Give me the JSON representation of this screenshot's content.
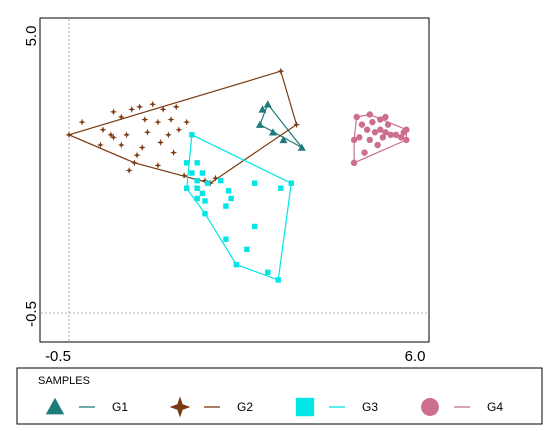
{
  "chart_data": {
    "type": "scatter",
    "xlim": [
      -0.5,
      6.0
    ],
    "ylim": [
      -0.5,
      5.0
    ],
    "x_tick_labels": [
      "-0.5",
      "6.0"
    ],
    "y_tick_labels": [
      "5.0",
      "-0.5"
    ],
    "reference_lines": {
      "x": -0.5,
      "y": -0.5
    },
    "grid": false,
    "legend": {
      "title": "SAMPLES",
      "placement": "bottom"
    },
    "series": [
      {
        "name": "G1",
        "marker": "triangle",
        "color": "#1f7a7a",
        "points": [
          [
            3.2,
            3.5
          ],
          [
            3.3,
            3.6
          ],
          [
            3.15,
            3.2
          ],
          [
            3.6,
            2.9
          ],
          [
            3.4,
            3.05
          ],
          [
            3.95,
            2.75
          ]
        ],
        "hull": [
          [
            3.3,
            3.6
          ],
          [
            3.95,
            2.75
          ],
          [
            3.15,
            3.2
          ]
        ]
      },
      {
        "name": "G2",
        "marker": "star4",
        "color": "#7a3a0f",
        "points": [
          [
            -0.25,
            3.25
          ],
          [
            0.35,
            3.45
          ],
          [
            0.7,
            3.5
          ],
          [
            0.85,
            3.55
          ],
          [
            1.1,
            3.6
          ],
          [
            1.3,
            3.5
          ],
          [
            1.55,
            3.55
          ],
          [
            0.5,
            3.35
          ],
          [
            0.95,
            3.3
          ],
          [
            1.2,
            3.25
          ],
          [
            1.45,
            3.3
          ],
          [
            1.75,
            3.25
          ],
          [
            0.15,
            3.1
          ],
          [
            0.3,
            3.0
          ],
          [
            0.6,
            3.0
          ],
          [
            1.0,
            3.05
          ],
          [
            1.4,
            3.0
          ],
          [
            1.6,
            3.1
          ],
          [
            0.1,
            2.8
          ],
          [
            0.5,
            2.8
          ],
          [
            0.9,
            2.75
          ],
          [
            1.25,
            2.85
          ],
          [
            0.35,
            2.95
          ],
          [
            0.8,
            2.6
          ],
          [
            1.5,
            2.65
          ],
          [
            1.2,
            2.4
          ],
          [
            0.65,
            2.3
          ],
          [
            1.7,
            2.2
          ],
          [
            2.1,
            2.1
          ],
          [
            2.3,
            2.15
          ],
          [
            -0.5,
            3.0
          ],
          [
            3.55,
            4.25
          ],
          [
            3.85,
            3.2
          ],
          [
            2.2,
            2.05
          ],
          [
            0.75,
            2.45
          ]
        ],
        "hull": [
          [
            -0.5,
            3.0
          ],
          [
            3.55,
            4.25
          ],
          [
            3.85,
            3.2
          ],
          [
            2.2,
            2.05
          ],
          [
            0.75,
            2.45
          ]
        ]
      },
      {
        "name": "G3",
        "marker": "square",
        "color": "#00e5e5",
        "points": [
          [
            1.85,
            3.0
          ],
          [
            1.75,
            2.45
          ],
          [
            1.95,
            2.45
          ],
          [
            1.85,
            2.25
          ],
          [
            2.05,
            2.25
          ],
          [
            1.95,
            2.1
          ],
          [
            2.15,
            2.05
          ],
          [
            1.95,
            1.95
          ],
          [
            2.05,
            1.85
          ],
          [
            1.95,
            1.75
          ],
          [
            2.1,
            1.7
          ],
          [
            2.4,
            2.1
          ],
          [
            2.55,
            1.9
          ],
          [
            2.6,
            1.75
          ],
          [
            2.5,
            1.6
          ],
          [
            3.05,
            2.05
          ],
          [
            3.55,
            1.95
          ],
          [
            3.75,
            2.05
          ],
          [
            2.1,
            1.45
          ],
          [
            3.05,
            1.2
          ],
          [
            2.5,
            0.95
          ],
          [
            2.9,
            0.75
          ],
          [
            3.3,
            0.3
          ],
          [
            3.5,
            0.15
          ],
          [
            2.7,
            0.45
          ],
          [
            1.75,
            1.95
          ]
        ],
        "hull": [
          [
            1.85,
            3.0
          ],
          [
            3.75,
            2.05
          ],
          [
            3.5,
            0.15
          ],
          [
            2.7,
            0.45
          ],
          [
            2.1,
            1.45
          ],
          [
            1.75,
            1.95
          ]
        ]
      },
      {
        "name": "G4",
        "marker": "circle",
        "color": "#cc6f8c",
        "points": [
          [
            5.0,
            3.35
          ],
          [
            5.25,
            3.4
          ],
          [
            5.45,
            3.3
          ],
          [
            5.55,
            3.35
          ],
          [
            5.3,
            3.25
          ],
          [
            5.1,
            3.2
          ],
          [
            5.6,
            3.2
          ],
          [
            5.2,
            3.1
          ],
          [
            5.45,
            3.1
          ],
          [
            5.35,
            3.05
          ],
          [
            5.55,
            3.05
          ],
          [
            5.65,
            3.0
          ],
          [
            5.75,
            3.0
          ],
          [
            5.9,
            3.05
          ],
          [
            5.85,
            2.95
          ],
          [
            5.05,
            2.95
          ],
          [
            5.25,
            2.9
          ],
          [
            5.5,
            2.95
          ],
          [
            5.4,
            2.8
          ],
          [
            5.15,
            2.65
          ],
          [
            4.95,
            2.9
          ],
          [
            4.95,
            2.45
          ],
          [
            5.95,
            2.9
          ],
          [
            5.95,
            3.1
          ]
        ],
        "hull": [
          [
            5.0,
            3.35
          ],
          [
            5.25,
            3.4
          ],
          [
            5.95,
            3.1
          ],
          [
            5.95,
            2.9
          ],
          [
            4.95,
            2.45
          ],
          [
            4.95,
            2.9
          ]
        ]
      }
    ]
  }
}
